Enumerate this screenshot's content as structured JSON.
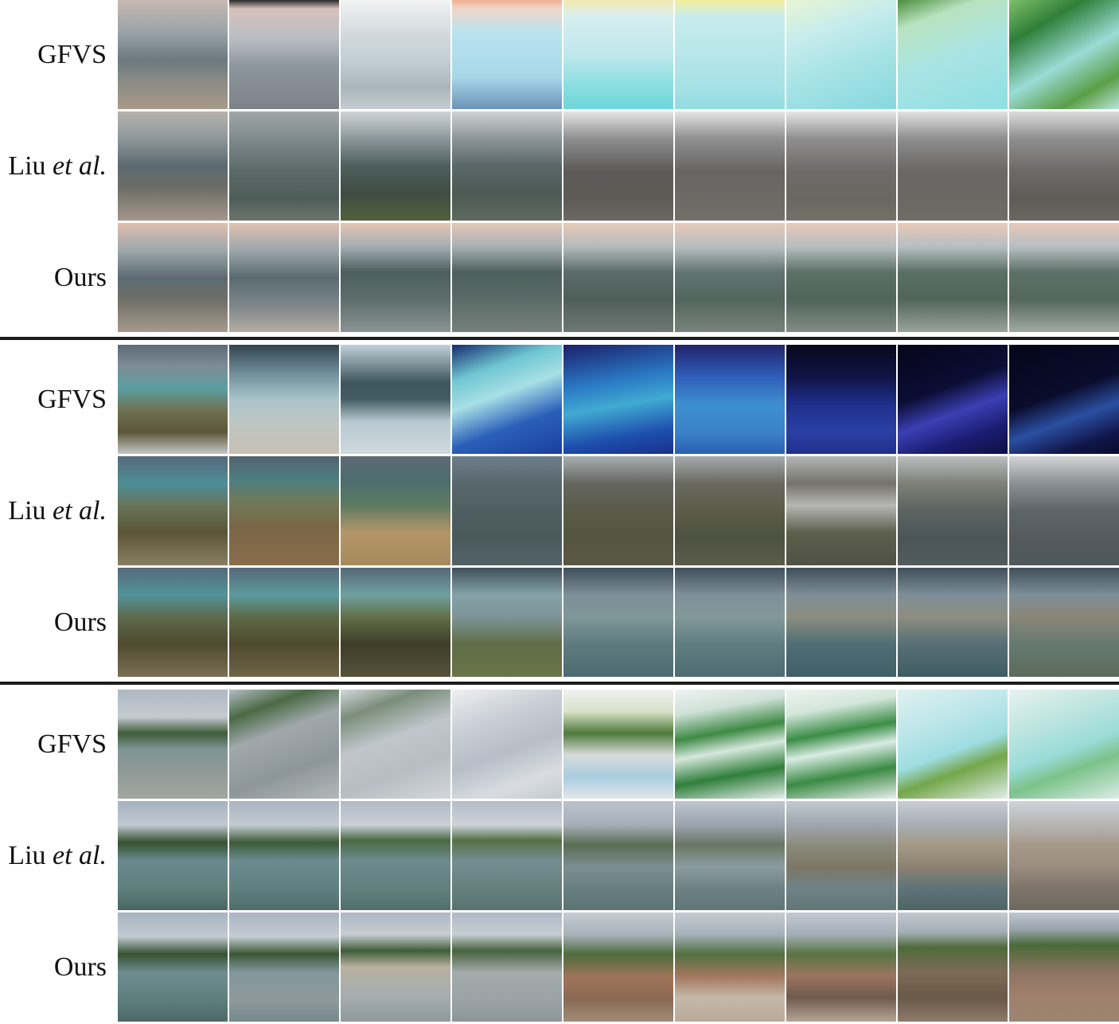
{
  "figure": {
    "method_labels": {
      "gfvs": "GFVS",
      "liu_name": "Liu",
      "liu_suffix": "et al.",
      "ours": "Ours"
    },
    "blocks": [
      {
        "rows": [
          {
            "method": "GFVS",
            "scene": "coast-dusk-gfvs"
          },
          {
            "method": "Liu",
            "scene": "coast-dusk-liu"
          },
          {
            "method": "Ours",
            "scene": "coast-dusk-ours"
          }
        ]
      },
      {
        "rows": [
          {
            "method": "GFVS",
            "scene": "grass-shore-gfvs"
          },
          {
            "method": "Liu",
            "scene": "grass-shore-liu"
          },
          {
            "method": "Ours",
            "scene": "grass-shore-ours"
          }
        ]
      },
      {
        "rows": [
          {
            "method": "GFVS",
            "scene": "tree-beach-gfvs"
          },
          {
            "method": "Liu",
            "scene": "tree-beach-liu"
          },
          {
            "method": "Ours",
            "scene": "tree-beach-ours"
          }
        ]
      }
    ]
  }
}
